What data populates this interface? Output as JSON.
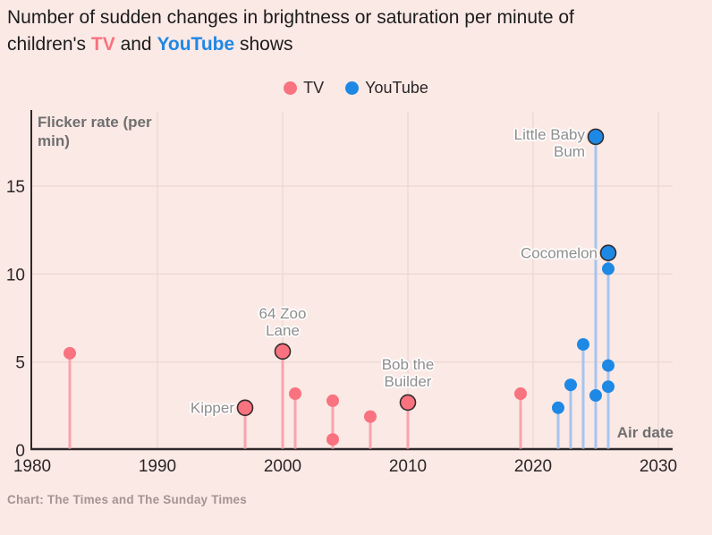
{
  "title": {
    "prefix": "Number of sudden changes in brightness or saturation per minute of children's ",
    "tv": "TV",
    "and": " and ",
    "youtube": "YouTube",
    "suffix": " shows"
  },
  "legend": [
    {
      "label": "TV",
      "color": "#f8737f"
    },
    {
      "label": "YouTube",
      "color": "#1e88e5"
    }
  ],
  "footer": "Chart: The Times and The Sunday Times",
  "theme": {
    "background": "#fbe9e6",
    "title": "#1c1c1c",
    "axis": "#2e2929",
    "tick": "#2b2626",
    "grid": "#eed9d6",
    "annotation": "#8f8d8d",
    "annotation_halo": "#ffffff",
    "axis_title": "#6f6f6f",
    "footer": "#a59392",
    "tv": "#f8737f",
    "tv_stem": "#f9a4ad",
    "youtube": "#1e88e5",
    "youtube_stem": "#a6c5ef",
    "dot_outline": "#352b2b"
  },
  "chart_data": {
    "type": "scatter",
    "style": "lollipop",
    "title": "Number of sudden changes in brightness or saturation per minute of children's TV and YouTube shows",
    "xlabel": "Air date",
    "ylabel": "Flicker rate (per min)",
    "ylabel_lines": [
      "Flicker rate (per",
      "min)"
    ],
    "xlim": [
      1980,
      2030
    ],
    "ylim": [
      0,
      18.5
    ],
    "xticks": [
      1980,
      1990,
      2000,
      2010,
      2020,
      2030
    ],
    "yticks": [
      0,
      5,
      10,
      15
    ],
    "grid": "on",
    "legend_position": "top-center",
    "series": [
      {
        "name": "TV",
        "color": "#f8737f",
        "stem_color": "#f9a4ad",
        "points": [
          {
            "year": 1983,
            "value": 5.5
          },
          {
            "year": 1997,
            "value": 2.4,
            "label": "Kipper",
            "label_lines": [
              "Kipper"
            ],
            "label_pos": "left"
          },
          {
            "year": 2000,
            "value": 5.6,
            "label": "64 Zoo Lane",
            "label_lines": [
              "64 Zoo",
              "Lane"
            ],
            "label_pos": "above"
          },
          {
            "year": 2001,
            "value": 3.2
          },
          {
            "year": 2004,
            "value": 2.8
          },
          {
            "year": 2004,
            "value": 0.6
          },
          {
            "year": 2007,
            "value": 1.9
          },
          {
            "year": 2010,
            "value": 2.7,
            "label": "Bob the Builder",
            "label_lines": [
              "Bob the",
              "Builder"
            ],
            "label_pos": "above"
          },
          {
            "year": 2019,
            "value": 3.2
          }
        ]
      },
      {
        "name": "YouTube",
        "color": "#1e88e5",
        "stem_color": "#a6c5ef",
        "points": [
          {
            "year": 2022,
            "value": 2.4
          },
          {
            "year": 2023,
            "value": 3.7
          },
          {
            "year": 2024,
            "value": 6
          },
          {
            "year": 2025,
            "value": 17.8,
            "label": "Little Baby Bum",
            "label_lines": [
              "Little Baby",
              "Bum"
            ],
            "label_pos": "left",
            "label_dy": 7
          },
          {
            "year": 2025,
            "value": 3.1
          },
          {
            "year": 2026,
            "value": 11.2,
            "label": "Cocomelon",
            "label_lines": [
              "Cocomelon"
            ],
            "label_pos": "left"
          },
          {
            "year": 2026,
            "value": 10.3
          },
          {
            "year": 2026,
            "value": 4.8
          },
          {
            "year": 2026,
            "value": 3.6
          }
        ]
      }
    ]
  }
}
